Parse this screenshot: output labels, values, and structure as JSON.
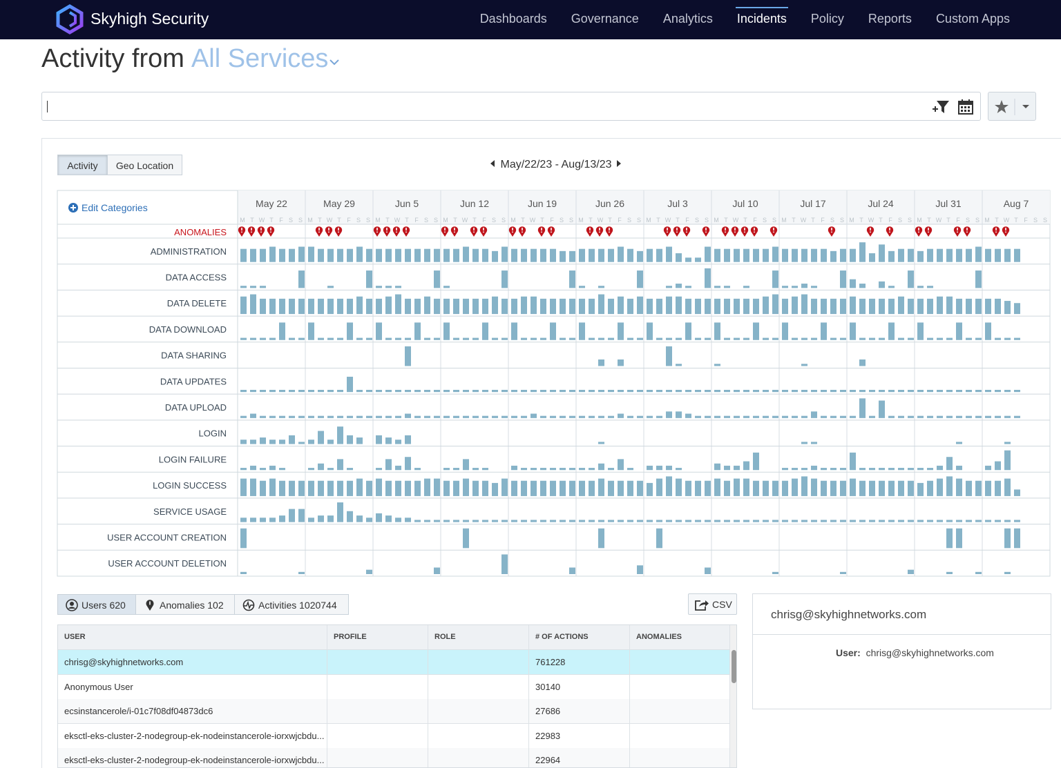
{
  "nav": {
    "brand": "Skyhigh Security",
    "items": [
      "Dashboards",
      "Governance",
      "Analytics",
      "Incidents",
      "Policy",
      "Reports",
      "Custom Apps"
    ],
    "active": 3
  },
  "page": {
    "title": "Activity from",
    "service": "All Services"
  },
  "view_tabs": [
    "Activity",
    "Geo Location"
  ],
  "date_range": "May/22/23 - Aug/13/23",
  "edit_categories": "Edit Categories",
  "weeks": [
    "May 22",
    "May 29",
    "Jun 5",
    "Jun 12",
    "Jun 19",
    "Jun 26",
    "Jul 3",
    "Jul 10",
    "Jul 17",
    "Jul 24",
    "Jul 31",
    "Aug 7"
  ],
  "day_letters": [
    "M",
    "T",
    "W",
    "T",
    "F",
    "S",
    "S"
  ],
  "anomalies": {
    "label": "ANOMALIES",
    "days": [
      1,
      1,
      1,
      1,
      null,
      null,
      null,
      null,
      1,
      1,
      1,
      null,
      null,
      null,
      1,
      1,
      1,
      1,
      null,
      null,
      null,
      1,
      1,
      null,
      1,
      1,
      null,
      null,
      1,
      1,
      null,
      1,
      1,
      null,
      null,
      null,
      1,
      1,
      1,
      null,
      null,
      null,
      null,
      null,
      1,
      1,
      1,
      null,
      1,
      null,
      1,
      1,
      1,
      1,
      null,
      1,
      null,
      null,
      null,
      null,
      null,
      1,
      null,
      null,
      null,
      1,
      null,
      1,
      null,
      null,
      1,
      1,
      null,
      null,
      1,
      1,
      null,
      null,
      1,
      1,
      null,
      null,
      null,
      null
    ]
  },
  "rows": [
    {
      "label": "ADMINISTRATION",
      "values": [
        6,
        6,
        6,
        7,
        6,
        6,
        7,
        7,
        6,
        6,
        6,
        6,
        7,
        6,
        6,
        6,
        6,
        6,
        6,
        6,
        6,
        6,
        6,
        7,
        6,
        6,
        5,
        7,
        6,
        6,
        6,
        6,
        6,
        5,
        5,
        6,
        6,
        6,
        6,
        7,
        6,
        5,
        6,
        6,
        7,
        4,
        2,
        2,
        7,
        6,
        6,
        6,
        6,
        6,
        6,
        7,
        6,
        6,
        6,
        6,
        6,
        5,
        6,
        6,
        9,
        4,
        8,
        5,
        6,
        6,
        5,
        6,
        6,
        6,
        6,
        6,
        7,
        6,
        6,
        6,
        6,
        null,
        null,
        null
      ]
    },
    {
      "label": "DATA ACCESS",
      "values": [
        1,
        1,
        1,
        null,
        null,
        null,
        8,
        null,
        null,
        1,
        null,
        null,
        null,
        8,
        1,
        1,
        1,
        null,
        null,
        null,
        8,
        1,
        null,
        null,
        null,
        null,
        null,
        8,
        null,
        null,
        null,
        null,
        null,
        null,
        8,
        1,
        null,
        1,
        null,
        null,
        null,
        8,
        null,
        null,
        1,
        2,
        1,
        null,
        9,
        1,
        1,
        null,
        1,
        null,
        null,
        8,
        1,
        1,
        2,
        1,
        null,
        null,
        8,
        4,
        2,
        null,
        3,
        1,
        null,
        8,
        1,
        1,
        null,
        null,
        null,
        null,
        8,
        null,
        null,
        null,
        null,
        null,
        null,
        null
      ]
    },
    {
      "label": "DATA DELETE",
      "values": [
        8,
        9,
        7,
        7,
        7,
        7,
        7,
        7,
        7,
        7,
        7,
        7,
        8,
        7,
        7,
        8,
        9,
        7,
        7,
        8,
        7,
        7,
        7,
        7,
        7,
        7,
        8,
        7,
        7,
        8,
        8,
        7,
        7,
        7,
        7,
        7,
        7,
        9,
        7,
        8,
        7,
        8,
        7,
        7,
        8,
        8,
        7,
        7,
        7,
        7,
        7,
        7,
        7,
        7,
        8,
        9,
        7,
        8,
        9,
        7,
        7,
        7,
        7,
        8,
        7,
        7,
        7,
        7,
        8,
        7,
        7,
        7,
        8,
        8,
        7,
        7,
        7,
        7,
        7,
        6,
        5,
        null,
        null,
        null
      ]
    },
    {
      "label": "DATA DOWNLOAD",
      "values": [
        1,
        1,
        1,
        1,
        8,
        1,
        1,
        8,
        1,
        1,
        1,
        8,
        1,
        1,
        8,
        1,
        1,
        1,
        8,
        1,
        1,
        8,
        1,
        1,
        1,
        8,
        1,
        1,
        8,
        1,
        1,
        1,
        8,
        1,
        1,
        8,
        1,
        1,
        1,
        8,
        1,
        1,
        8,
        1,
        1,
        1,
        8,
        1,
        1,
        8,
        1,
        1,
        1,
        8,
        1,
        1,
        8,
        1,
        1,
        1,
        8,
        1,
        1,
        8,
        1,
        1,
        1,
        8,
        1,
        1,
        8,
        1,
        1,
        1,
        8,
        1,
        1,
        8,
        1,
        1,
        1,
        null,
        null,
        null
      ]
    },
    {
      "label": "DATA SHARING",
      "values": [
        null,
        null,
        null,
        null,
        null,
        null,
        null,
        null,
        null,
        null,
        null,
        null,
        null,
        null,
        null,
        null,
        null,
        9,
        null,
        null,
        null,
        null,
        null,
        null,
        null,
        null,
        null,
        null,
        null,
        null,
        null,
        null,
        null,
        null,
        null,
        null,
        null,
        3,
        null,
        3,
        null,
        null,
        null,
        null,
        9,
        1,
        null,
        null,
        null,
        1,
        null,
        null,
        null,
        null,
        null,
        null,
        null,
        null,
        1,
        null,
        null,
        null,
        null,
        null,
        3,
        null,
        null,
        null,
        null,
        null,
        null,
        null,
        null,
        null,
        null,
        null,
        null,
        null,
        null,
        null,
        null,
        null,
        null,
        null
      ]
    },
    {
      "label": "DATA UPDATES",
      "values": [
        1,
        1,
        1,
        1,
        1,
        1,
        1,
        1,
        1,
        1,
        1,
        7,
        1,
        1,
        1,
        1,
        1,
        1,
        1,
        1,
        1,
        1,
        1,
        1,
        1,
        1,
        1,
        1,
        1,
        1,
        1,
        1,
        1,
        1,
        1,
        1,
        1,
        1,
        1,
        1,
        1,
        1,
        1,
        1,
        1,
        1,
        1,
        1,
        1,
        1,
        1,
        1,
        1,
        1,
        1,
        1,
        1,
        1,
        1,
        1,
        1,
        1,
        1,
        1,
        1,
        1,
        1,
        1,
        1,
        1,
        1,
        1,
        1,
        1,
        1,
        1,
        1,
        1,
        1,
        1,
        1,
        null,
        null,
        null
      ]
    },
    {
      "label": "DATA UPLOAD",
      "values": [
        1,
        2,
        1,
        1,
        1,
        1,
        1,
        1,
        1,
        1,
        1,
        1,
        1,
        1,
        1,
        1,
        1,
        2,
        1,
        1,
        1,
        1,
        1,
        1,
        1,
        1,
        1,
        1,
        1,
        1,
        2,
        1,
        1,
        1,
        1,
        1,
        1,
        1,
        1,
        2,
        1,
        1,
        1,
        1,
        3,
        3,
        2,
        1,
        1,
        1,
        1,
        1,
        1,
        1,
        1,
        1,
        1,
        1,
        1,
        3,
        1,
        1,
        1,
        1,
        9,
        1,
        8,
        1,
        1,
        1,
        1,
        1,
        1,
        1,
        1,
        1,
        1,
        1,
        1,
        1,
        1,
        null,
        null,
        null
      ]
    },
    {
      "label": "LOGIN",
      "values": [
        2,
        2,
        3,
        2,
        2,
        4,
        1,
        2,
        6,
        2,
        8,
        4,
        3,
        null,
        4,
        3,
        2,
        4,
        null,
        null,
        null,
        null,
        null,
        null,
        null,
        null,
        null,
        null,
        null,
        null,
        null,
        null,
        null,
        null,
        null,
        null,
        null,
        1,
        null,
        null,
        null,
        null,
        null,
        null,
        null,
        null,
        null,
        null,
        null,
        null,
        null,
        null,
        null,
        null,
        null,
        null,
        null,
        null,
        1,
        1,
        null,
        null,
        null,
        null,
        null,
        null,
        null,
        null,
        null,
        null,
        null,
        null,
        null,
        null,
        1,
        null,
        null,
        null,
        null,
        1,
        null,
        null,
        null,
        null
      ]
    },
    {
      "label": "LOGIN FAILURE",
      "values": [
        1,
        2,
        1,
        2,
        1,
        null,
        null,
        1,
        3,
        1,
        5,
        1,
        null,
        null,
        1,
        5,
        2,
        6,
        1,
        null,
        null,
        1,
        1,
        5,
        1,
        1,
        null,
        null,
        2,
        1,
        1,
        1,
        1,
        1,
        1,
        1,
        1,
        3,
        1,
        5,
        1,
        null,
        2,
        2,
        2,
        1,
        null,
        null,
        null,
        3,
        2,
        2,
        4,
        8,
        null,
        null,
        1,
        1,
        1,
        2,
        1,
        1,
        1,
        8,
        1,
        1,
        1,
        1,
        1,
        1,
        1,
        1,
        2,
        6,
        2,
        null,
        null,
        2,
        4,
        9,
        null,
        null,
        null,
        null
      ]
    },
    {
      "label": "LOGIN SUCCESS",
      "values": [
        8,
        8,
        7,
        8,
        7,
        7,
        7,
        7,
        7,
        7,
        7,
        7,
        8,
        7,
        8,
        7,
        7,
        7,
        7,
        8,
        8,
        7,
        7,
        8,
        7,
        7,
        6,
        8,
        7,
        7,
        7,
        7,
        7,
        7,
        7,
        7,
        7,
        8,
        7,
        7,
        7,
        7,
        6,
        8,
        9,
        8,
        7,
        7,
        7,
        8,
        7,
        8,
        8,
        7,
        7,
        7,
        7,
        8,
        9,
        8,
        7,
        7,
        7,
        8,
        7,
        7,
        7,
        7,
        7,
        7,
        6,
        7,
        8,
        9,
        8,
        7,
        7,
        7,
        7,
        8,
        3,
        null,
        null,
        null
      ]
    },
    {
      "label": "SERVICE USAGE",
      "values": [
        2,
        2,
        2,
        2,
        3,
        6,
        6,
        2,
        3,
        3,
        9,
        5,
        3,
        2,
        4,
        3,
        2,
        2,
        1,
        1,
        1,
        1,
        1,
        1,
        1,
        1,
        1,
        1,
        1,
        1,
        1,
        1,
        1,
        1,
        1,
        1,
        1,
        1,
        1,
        1,
        1,
        1,
        1,
        1,
        1,
        1,
        1,
        1,
        1,
        1,
        1,
        1,
        1,
        1,
        1,
        1,
        1,
        1,
        1,
        1,
        1,
        1,
        1,
        1,
        1,
        1,
        1,
        1,
        1,
        1,
        1,
        1,
        1,
        1,
        1,
        1,
        1,
        1,
        1,
        1,
        1,
        null,
        null,
        null
      ]
    },
    {
      "label": "USER ACCOUNT CREATION",
      "values": [
        9,
        null,
        null,
        null,
        null,
        null,
        null,
        null,
        null,
        null,
        null,
        null,
        null,
        null,
        null,
        null,
        null,
        null,
        null,
        null,
        null,
        null,
        null,
        9,
        null,
        null,
        null,
        null,
        null,
        null,
        null,
        null,
        null,
        null,
        null,
        null,
        null,
        9,
        null,
        null,
        null,
        null,
        null,
        9,
        null,
        null,
        null,
        null,
        null,
        null,
        null,
        null,
        null,
        null,
        null,
        null,
        null,
        null,
        null,
        null,
        null,
        null,
        null,
        null,
        null,
        null,
        null,
        null,
        null,
        null,
        null,
        null,
        null,
        9,
        9,
        null,
        null,
        null,
        null,
        9,
        9,
        null,
        null,
        null
      ]
    },
    {
      "label": "USER ACCOUNT DELETION",
      "values": [
        1,
        null,
        null,
        null,
        null,
        null,
        1,
        null,
        null,
        null,
        null,
        null,
        null,
        2,
        null,
        null,
        null,
        null,
        null,
        null,
        3,
        null,
        null,
        null,
        null,
        null,
        null,
        9,
        null,
        null,
        null,
        null,
        null,
        null,
        3,
        null,
        null,
        null,
        null,
        null,
        null,
        4,
        null,
        null,
        null,
        null,
        null,
        null,
        3,
        null,
        null,
        null,
        null,
        null,
        null,
        1,
        null,
        null,
        null,
        null,
        null,
        null,
        1,
        null,
        null,
        null,
        null,
        null,
        null,
        2,
        null,
        null,
        null,
        1,
        null,
        null,
        1,
        null,
        null,
        1,
        null,
        null,
        null,
        null
      ]
    }
  ],
  "summary_tabs": [
    {
      "label": "Users",
      "count": 620
    },
    {
      "label": "Anomalies",
      "count": 102
    },
    {
      "label": "Activities",
      "count": 1020744
    }
  ],
  "csv": "CSV",
  "table": {
    "columns": [
      "USER",
      "PROFILE",
      "ROLE",
      "# OF ACTIONS",
      "ANOMALIES"
    ],
    "rows": [
      {
        "user": "chrisg@skyhighnetworks.com",
        "actions": 761228
      },
      {
        "user": "Anonymous User",
        "actions": 30140
      },
      {
        "user": "ecsinstancerole/i-01c7f08df04873dc6",
        "actions": 27686
      },
      {
        "user": "eksctl-eks-cluster-2-nodegroup-ek-nodeinstancerole-iorxwjcbdu...",
        "actions": 22983
      },
      {
        "user": "eksctl-eks-cluster-2-nodegroup-ek-nodeinstancerole-iorxwjcbdu...",
        "actions": 22964
      }
    ],
    "selected": 0
  },
  "detail": {
    "title": "chrisg@skyhighnetworks.com",
    "field": "User:",
    "value": "chrisg@skyhighnetworks.com"
  }
}
